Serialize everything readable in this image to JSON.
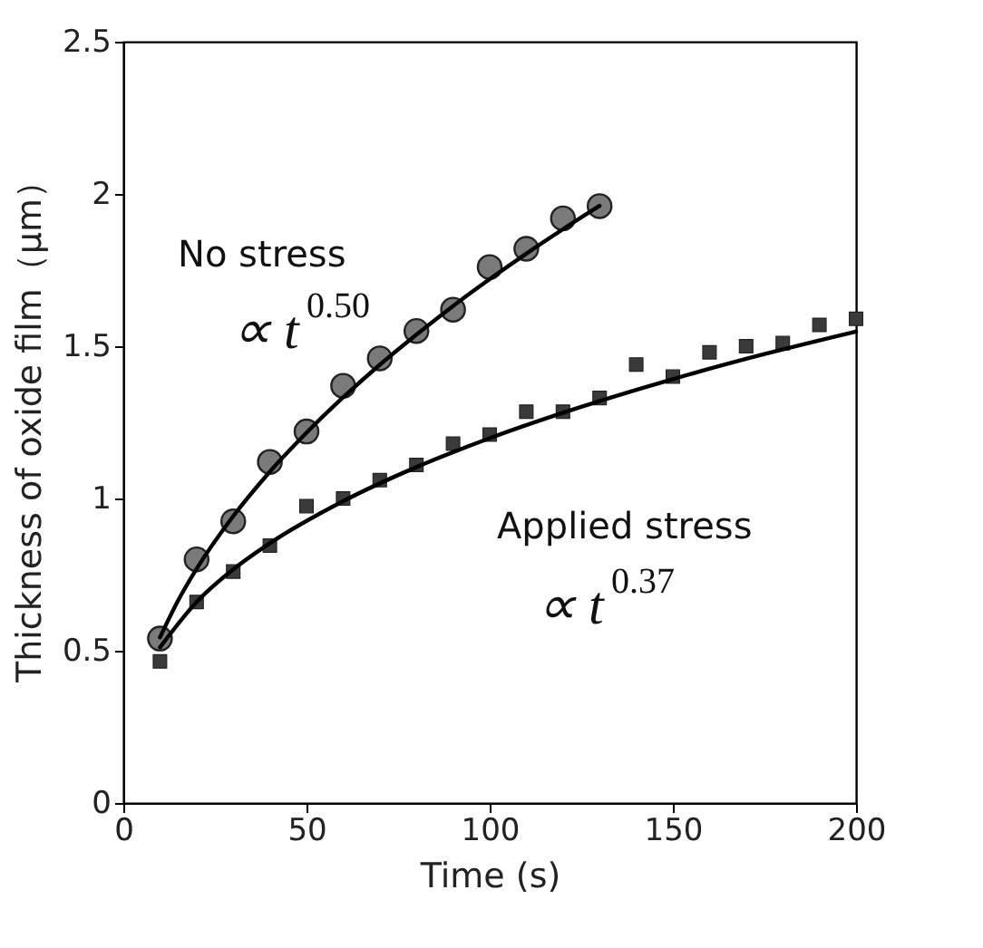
{
  "chart_data": {
    "type": "scatter",
    "xlabel": "Time (s)",
    "ylabel": "Thickness of oxide film（μm）",
    "xlim": [
      0,
      200
    ],
    "xticks": [
      0,
      50,
      100,
      150,
      200
    ],
    "ylim": [
      0,
      2.5
    ],
    "yticks": [
      0,
      0.5,
      1,
      1.5,
      2,
      2.5
    ],
    "series": [
      {
        "marker": "circle",
        "color": "#7a7a7a",
        "x": [
          10,
          20,
          30,
          40,
          50,
          60,
          70,
          80,
          90,
          100,
          110,
          120,
          130
        ],
        "values": [
          0.54,
          0.8,
          0.925,
          1.12,
          1.22,
          1.37,
          1.46,
          1.55,
          1.62,
          1.76,
          1.82,
          1.92,
          1.96
        ]
      },
      {
        "marker": "square",
        "color": "#3a3a3a",
        "x": [
          10,
          20,
          30,
          40,
          50,
          60,
          70,
          80,
          90,
          100,
          110,
          120,
          130,
          140,
          150,
          160,
          170,
          180,
          190,
          200
        ],
        "values": [
          0.465,
          0.66,
          0.76,
          0.845,
          0.975,
          1.0,
          1.06,
          1.11,
          1.18,
          1.21,
          1.285,
          1.285,
          1.33,
          1.44,
          1.4,
          1.48,
          1.5,
          1.51,
          1.57,
          1.59
        ]
      },
      {
        "type": "line",
        "line_style": "solid",
        "color": "#000000",
        "x": [
          10,
          15,
          20,
          30,
          40,
          50,
          60,
          70,
          80,
          90,
          100,
          110,
          120,
          130
        ],
        "values": [
          0.544,
          0.666,
          0.769,
          0.942,
          1.088,
          1.216,
          1.332,
          1.439,
          1.538,
          1.632,
          1.72,
          1.804,
          1.884,
          1.961
        ]
      },
      {
        "type": "line",
        "line_style": "solid",
        "color": "#000000",
        "x": [
          10,
          20,
          30,
          40,
          60,
          80,
          100,
          125,
          150,
          175,
          200
        ],
        "values": [
          0.511,
          0.66,
          0.767,
          0.853,
          0.991,
          1.103,
          1.198,
          1.301,
          1.392,
          1.474,
          1.548
        ]
      }
    ],
    "annotations": [
      "No stress",
      "∝ t$^{0.50}$",
      "Applied stress",
      "∝ t$^{0.37}$"
    ]
  }
}
